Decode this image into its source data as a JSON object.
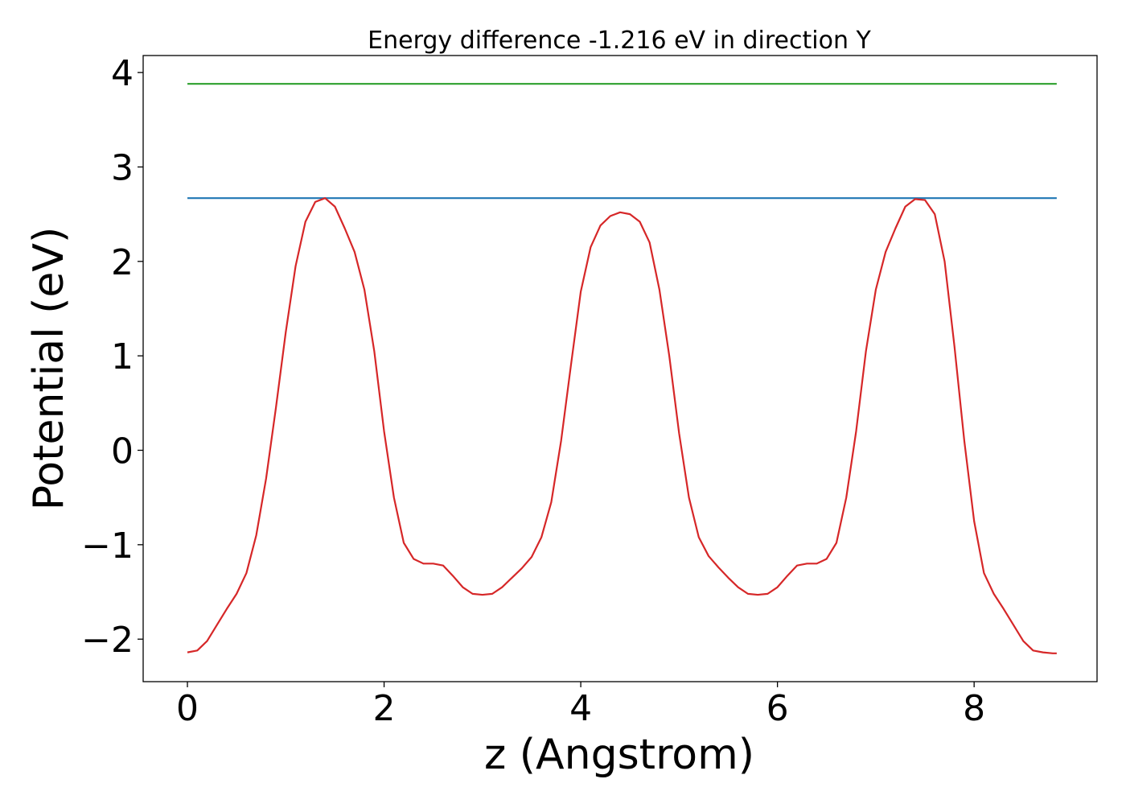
{
  "chart_data": {
    "type": "line",
    "title": "Energy difference -1.216 eV in direction Y",
    "xlabel": "z (Angstrom)",
    "ylabel": "Potential (eV)",
    "xlim": [
      -0.45,
      9.25
    ],
    "ylim": [
      -2.45,
      4.18
    ],
    "xticks": [
      0,
      2,
      4,
      6,
      8
    ],
    "yticks": [
      -2,
      -1,
      0,
      1,
      2,
      3,
      4
    ],
    "grid": false,
    "legend": "none",
    "series": [
      {
        "color": "#2ca02c",
        "x": [
          0,
          8.84
        ],
        "y": [
          3.88,
          3.88
        ]
      },
      {
        "color": "#1f77b4",
        "x": [
          0,
          8.84
        ],
        "y": [
          2.67,
          2.67
        ]
      },
      {
        "color": "#d62728",
        "x": [
          0,
          0.1,
          0.2,
          0.3,
          0.4,
          0.5,
          0.6,
          0.7,
          0.8,
          0.9,
          1.0,
          1.1,
          1.2,
          1.3,
          1.4,
          1.5,
          1.6,
          1.7,
          1.8,
          1.9,
          2.0,
          2.1,
          2.2,
          2.3,
          2.4,
          2.5,
          2.6,
          2.7,
          2.8,
          2.9,
          3.0,
          3.1,
          3.2,
          3.3,
          3.4,
          3.5,
          3.6,
          3.7,
          3.8,
          3.9,
          4.0,
          4.1,
          4.2,
          4.3,
          4.4,
          4.5,
          4.6,
          4.7,
          4.8,
          4.9,
          5.0,
          5.1,
          5.2,
          5.3,
          5.4,
          5.5,
          5.6,
          5.7,
          5.8,
          5.9,
          6.0,
          6.1,
          6.2,
          6.3,
          6.4,
          6.5,
          6.6,
          6.7,
          6.8,
          6.9,
          7.0,
          7.1,
          7.2,
          7.3,
          7.4,
          7.5,
          7.6,
          7.7,
          7.8,
          7.9,
          8.0,
          8.1,
          8.2,
          8.3,
          8.4,
          8.5,
          8.6,
          8.7,
          8.8,
          8.84
        ],
        "y": [
          -2.14,
          -2.12,
          -2.02,
          -1.85,
          -1.68,
          -1.52,
          -1.3,
          -0.9,
          -0.3,
          0.45,
          1.25,
          1.95,
          2.42,
          2.63,
          2.67,
          2.58,
          2.35,
          2.1,
          1.7,
          1.05,
          0.2,
          -0.5,
          -0.98,
          -1.15,
          -1.2,
          -1.2,
          -1.22,
          -1.33,
          -1.45,
          -1.52,
          -1.53,
          -1.52,
          -1.45,
          -1.35,
          -1.25,
          -1.13,
          -0.92,
          -0.55,
          0.1,
          0.9,
          1.68,
          2.15,
          2.38,
          2.48,
          2.52,
          2.5,
          2.42,
          2.2,
          1.7,
          1.0,
          0.18,
          -0.5,
          -0.92,
          -1.12,
          -1.24,
          -1.35,
          -1.45,
          -1.52,
          -1.53,
          -1.52,
          -1.45,
          -1.33,
          -1.22,
          -1.2,
          -1.2,
          -1.15,
          -0.98,
          -0.5,
          0.2,
          1.05,
          1.7,
          2.1,
          2.35,
          2.58,
          2.66,
          2.65,
          2.5,
          2.0,
          1.1,
          0.1,
          -0.75,
          -1.3,
          -1.52,
          -1.68,
          -1.85,
          -2.02,
          -2.12,
          -2.14,
          -2.15,
          -2.15
        ]
      }
    ]
  }
}
